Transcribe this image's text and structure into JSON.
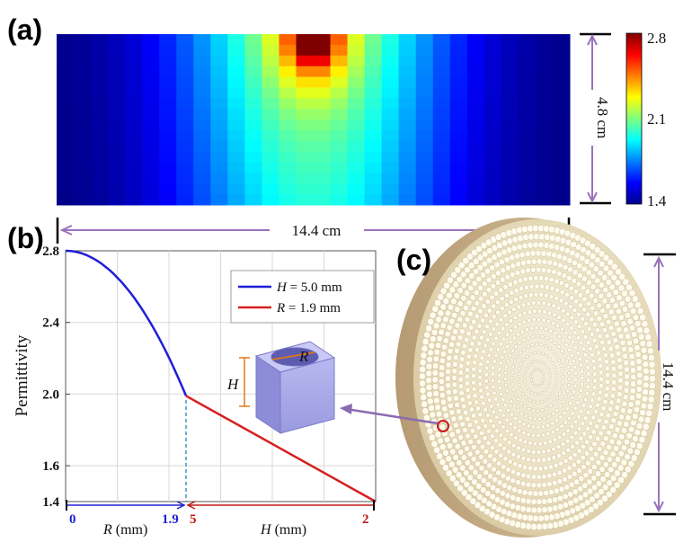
{
  "panels": {
    "a": "(a)",
    "b": "(b)",
    "c": "(c)"
  },
  "heatmap": {
    "rows": 16,
    "cols": 30,
    "width_label": "14.4 cm",
    "height_label": "4.8 cm",
    "colorbar": {
      "max": "2.8",
      "mid": "2.1",
      "min": "1.4"
    },
    "value_range": [
      1.4,
      2.8
    ],
    "colormap": "jet"
  },
  "chart_data": {
    "type": "line",
    "ylabel": "Permittivity",
    "ylim": [
      1.4,
      2.8
    ],
    "yticks": [
      "2.8",
      "2.4",
      "2.0",
      "1.6",
      "1.4"
    ],
    "series": [
      {
        "name": "H = 5.0 mm",
        "color": "#1f1fd6",
        "x": [
          0,
          0.5,
          1.0,
          1.5,
          1.9
        ],
        "y": [
          2.8,
          2.73,
          2.52,
          2.22,
          1.99
        ]
      },
      {
        "name": "R = 1.9 mm",
        "color": "#d61f1f",
        "x": [
          5,
          2
        ],
        "y": [
          1.99,
          1.4
        ]
      }
    ],
    "legend": [
      {
        "prefix": "H",
        "text": " = 5.0 mm",
        "color": "#1f1fd6"
      },
      {
        "prefix": "R",
        "text": " = 1.9 mm",
        "color": "#d61f1f"
      }
    ],
    "r_axis": {
      "label_var": "R",
      "label_unit": " (mm)",
      "start": "0",
      "end": "1.9",
      "color": "#1f1fd6"
    },
    "h_axis": {
      "label_var": "H",
      "label_unit": " (mm)",
      "start": "5",
      "end": "2",
      "color": "#c01818"
    },
    "inset": {
      "r_label": "R",
      "h_label": "H"
    }
  },
  "photo": {
    "diameter_label": "14.4 cm"
  }
}
